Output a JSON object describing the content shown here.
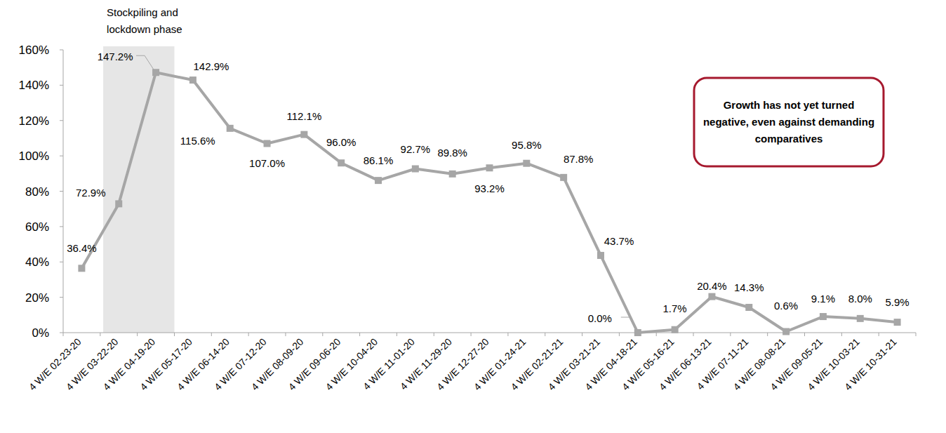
{
  "chart_data": {
    "type": "line",
    "categories": [
      "4 W/E 02-23-20",
      "4 W/E 03-22-20",
      "4 W/E 04-19-20",
      "4 W/E 05-17-20",
      "4 W/E 06-14-20",
      "4 W/E 07-12-20",
      "4 W/E 08-09-20",
      "4 W/E 09-06-20",
      "4 W/E 10-04-20",
      "4 W/E 11-01-20",
      "4 W/E 11-29-20",
      "4 W/E 12-27-20",
      "4 W/E 01-24-21",
      "4 W/E 02-21-21",
      "4 W/E 03-21-21",
      "4 W/E 04-18-21",
      "4 W/E 05-16-21",
      "4 W/E 06-13-21",
      "4 W/E 07-11-21",
      "4 W/E 08-08-21",
      "4 W/E 09-05-21",
      "4 W/E 10-03-21",
      "4 W/E 10-31-21"
    ],
    "values": [
      36.4,
      72.9,
      147.2,
      142.9,
      115.6,
      107.0,
      112.1,
      96.0,
      86.1,
      92.7,
      89.8,
      93.2,
      95.8,
      87.8,
      43.7,
      0.0,
      1.7,
      20.4,
      14.3,
      0.6,
      9.1,
      8.0,
      5.9
    ],
    "value_labels": [
      "36.4%",
      "72.9%",
      "147.2%",
      "142.9%",
      "115.6%",
      "107.0%",
      "112.1%",
      "96.0%",
      "86.1%",
      "92.7%",
      "89.8%",
      "93.2%",
      "95.8%",
      "87.8%",
      "43.7%",
      "0.0%",
      "1.7%",
      "20.4%",
      "14.3%",
      "0.6%",
      "9.1%",
      "8.0%",
      "5.9%"
    ],
    "color": "#a6a6a6",
    "marker": "square",
    "data_labels": true,
    "grid": false,
    "ylim": [
      0,
      160
    ],
    "yticks": [
      {
        "value": 0,
        "label": "0%"
      },
      {
        "value": 20,
        "label": "20%"
      },
      {
        "value": 40,
        "label": "40%"
      },
      {
        "value": 60,
        "label": "60%"
      },
      {
        "value": 80,
        "label": "80%"
      },
      {
        "value": 100,
        "label": "100%"
      },
      {
        "value": 120,
        "label": "120%"
      },
      {
        "value": 140,
        "label": "140%"
      },
      {
        "value": 160,
        "label": "160%"
      }
    ],
    "annotations": [
      {
        "text": "Stockpiling and lockdown phase",
        "from": "4 W/E 03-22-20",
        "to": "4 W/E 04-19-20"
      },
      {
        "text": "Growth has not yet turned negative, even against demanding comparatives"
      }
    ]
  }
}
